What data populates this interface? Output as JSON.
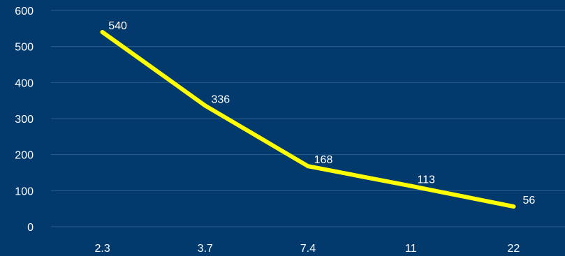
{
  "colors": {
    "background": "#033a6e",
    "gridline": "#2a5c8a",
    "series_line": "#ffff00",
    "text": "#ffffff"
  },
  "chart_data": {
    "type": "line",
    "title": "",
    "xlabel": "",
    "ylabel": "",
    "categories": [
      "2.3",
      "3.7",
      "7.4",
      "11",
      "22"
    ],
    "series": [
      {
        "values": [
          540,
          336,
          168,
          113,
          56
        ],
        "data_labels": [
          "540",
          "336",
          "168",
          "113",
          "56"
        ]
      }
    ],
    "ylim": [
      0,
      600
    ],
    "yticks": [
      "0",
      "100",
      "200",
      "300",
      "400",
      "500",
      "600"
    ],
    "grid": true,
    "legend": "none"
  }
}
